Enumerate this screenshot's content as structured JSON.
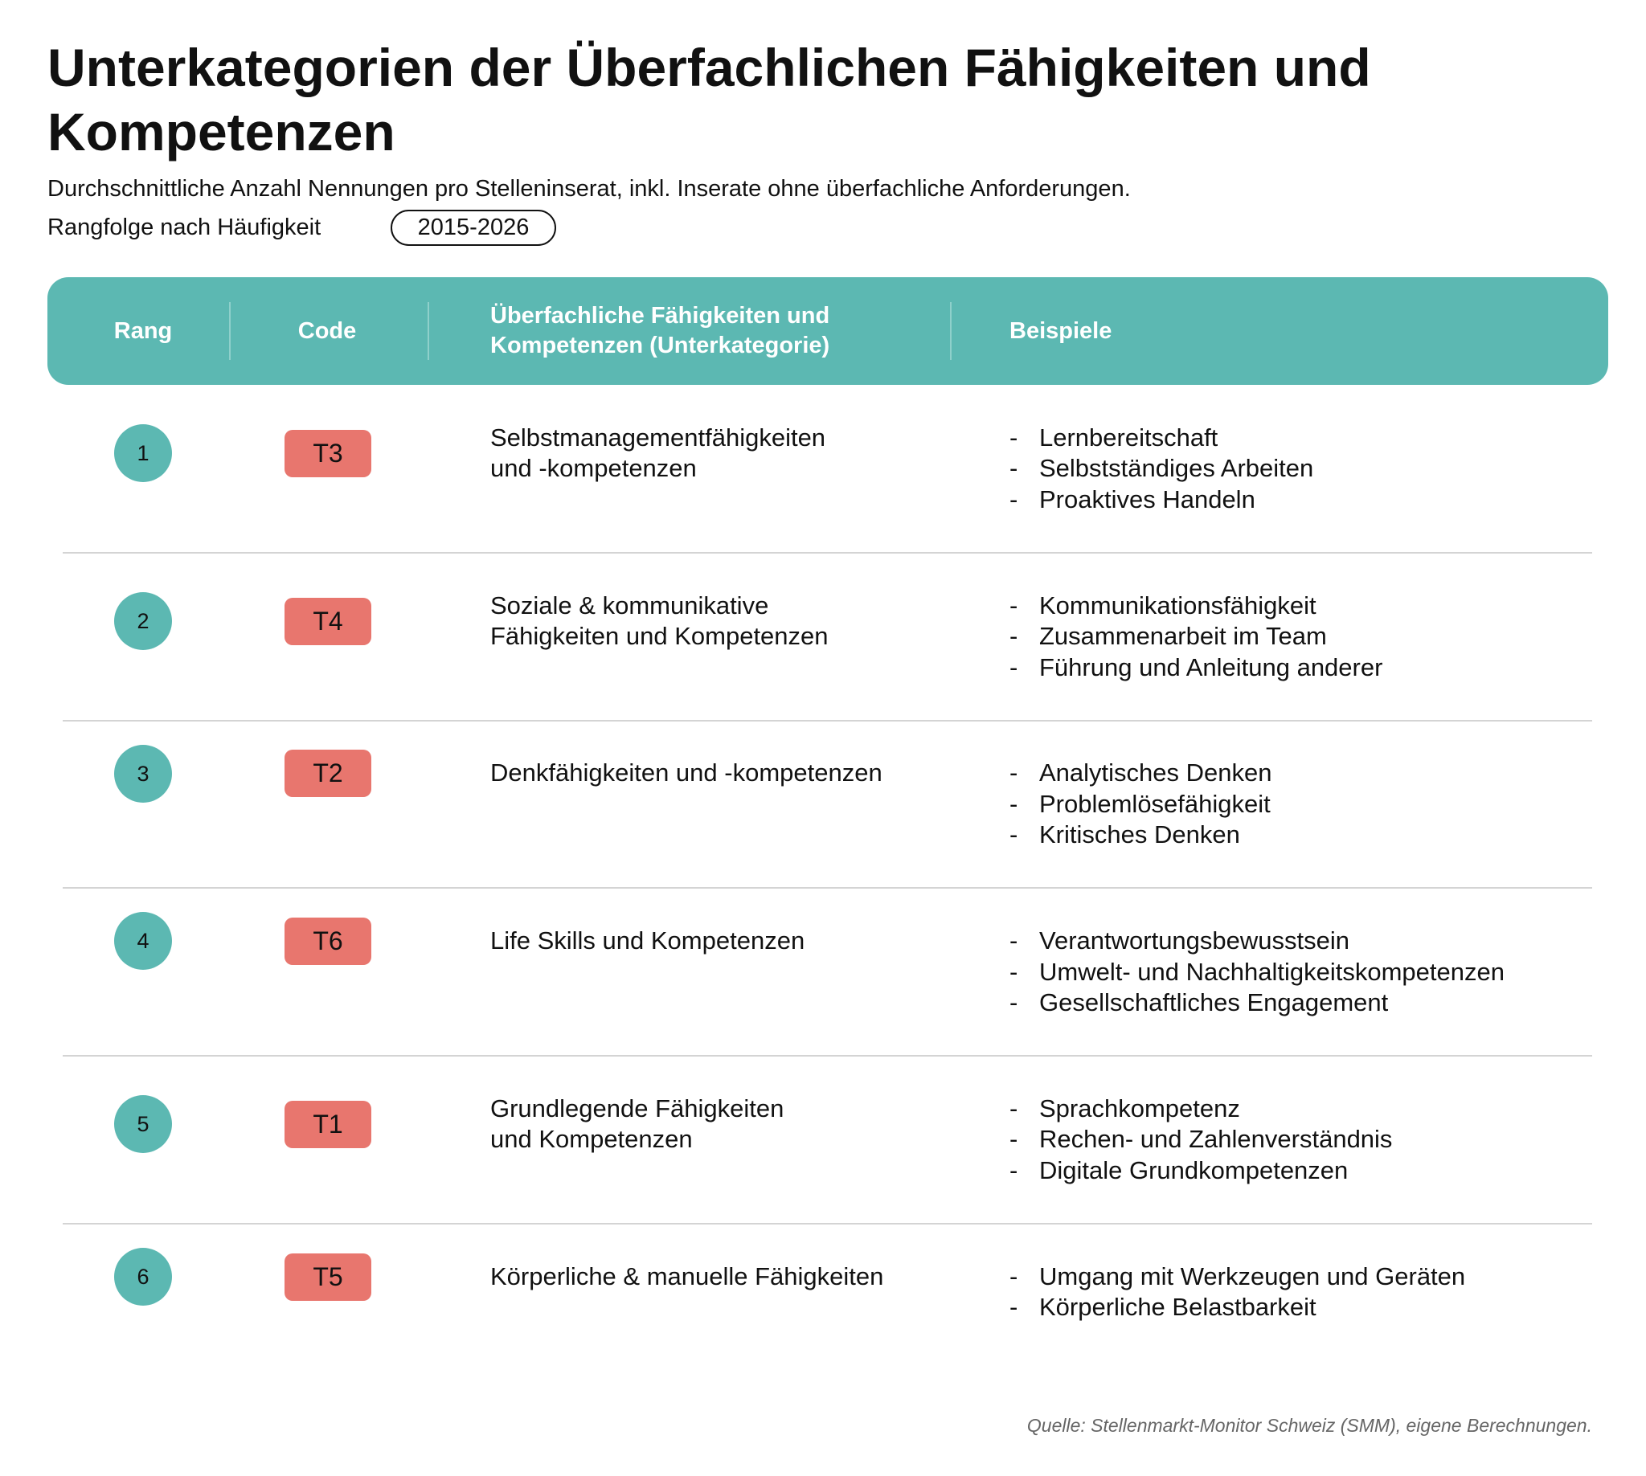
{
  "header": {
    "title": "Unterkategorien der Überfachlichen Fähigkeiten und Kompetenzen",
    "subtitle": "Durchschnittliche Anzahl Nennungen pro Stelleninserat, inkl. Inserate ohne überfachliche Anforderungen.",
    "ranking_note": "Rangfolge nach Häufigkeit",
    "period": "2015-2026"
  },
  "table": {
    "columns": [
      "Rang",
      "Code",
      "Überfachliche Fähigkeiten und Kompetenzen (Unterkategorie)",
      "Beispiele"
    ],
    "rows": [
      {
        "rank": "1",
        "code": "T3",
        "name": [
          "Selbstmanagementfähigkeiten",
          "und -kompetenzen"
        ],
        "examples": [
          "Lernbereitschaft",
          "Selbstständiges Arbeiten",
          "Proaktives Handeln"
        ]
      },
      {
        "rank": "2",
        "code": "T4",
        "name": [
          "Soziale & kommunikative",
          "Fähigkeiten und Kompetenzen"
        ],
        "examples": [
          "Kommunikationsfähigkeit",
          "Zusammenarbeit im Team",
          "Führung und Anleitung anderer"
        ]
      },
      {
        "rank": "3",
        "code": "T2",
        "name": [
          "Denkfähigkeiten und -kompetenzen"
        ],
        "examples": [
          "Analytisches Denken",
          "Problemlösefähigkeit",
          "Kritisches Denken"
        ]
      },
      {
        "rank": "4",
        "code": "T6",
        "name": [
          "Life Skills und Kompetenzen"
        ],
        "examples": [
          "Verantwortungsbewusstsein",
          "Umwelt- und Nachhaltigkeitskompetenzen",
          "Gesellschaftliches Engagement"
        ]
      },
      {
        "rank": "5",
        "code": "T1",
        "name": [
          "Grundlegende Fähigkeiten",
          "und Kompetenzen"
        ],
        "examples": [
          "Sprachkompetenz",
          "Rechen- und Zahlenverständnis",
          "Digitale Grundkompetenzen"
        ]
      },
      {
        "rank": "6",
        "code": "T5",
        "name": [
          "Körperliche & manuelle Fähigkeiten"
        ],
        "examples": [
          "Umgang mit Werkzeugen und Geräten",
          "Körperliche Belastbarkeit"
        ]
      }
    ],
    "bullet": "-"
  },
  "footer": {
    "source": "Quelle: Stellenmarkt-Monitor Schweiz (SMM), eigene Berechnungen."
  }
}
